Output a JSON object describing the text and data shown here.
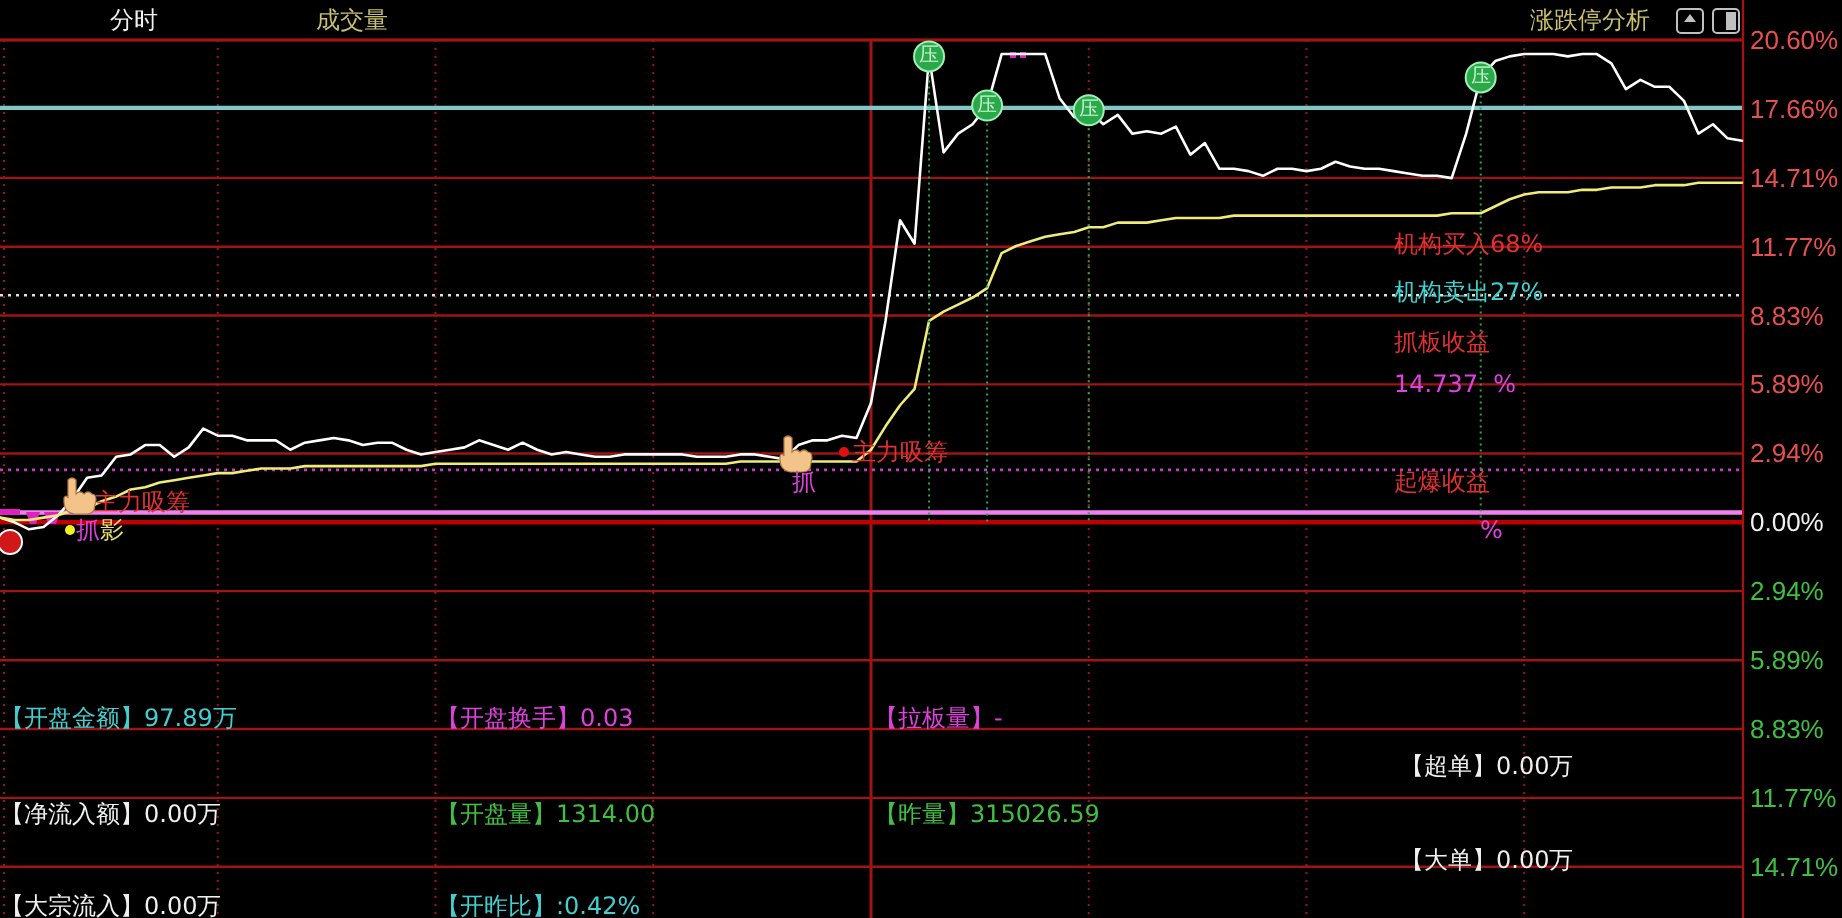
{
  "chart_data": {
    "type": "line",
    "title": "分时",
    "subtitle": "成交量",
    "categories": [
      null,
      null,
      null,
      null,
      null,
      null,
      null,
      null,
      null,
      null,
      null,
      null,
      null,
      null,
      null,
      null,
      null,
      null,
      null,
      null,
      null,
      null,
      null,
      null,
      null,
      null,
      null,
      null,
      null,
      null,
      null,
      null,
      null,
      null,
      null,
      null,
      null,
      null,
      null,
      null,
      null,
      null,
      null,
      null,
      null,
      null,
      null,
      null,
      null,
      null,
      null,
      null,
      null,
      null,
      null,
      null,
      null,
      null,
      null,
      null,
      null,
      null,
      null,
      null,
      null,
      null,
      null,
      null,
      null,
      null,
      null,
      null,
      null,
      null,
      null,
      null,
      null,
      null,
      null,
      null,
      null,
      null,
      null,
      null,
      null,
      null,
      null,
      null,
      null,
      null,
      null,
      null,
      null,
      null,
      null,
      null,
      null,
      null,
      null,
      null,
      null,
      null,
      null,
      null,
      null,
      null,
      null,
      null,
      null,
      null,
      null,
      null,
      null,
      null,
      null,
      null,
      null,
      null,
      null,
      null,
      null
    ],
    "series": [
      {
        "color": "#ffffff",
        "values": [
          0.2,
          0.0,
          -0.3,
          -0.2,
          0.3,
          1.0,
          1.9,
          2.0,
          2.8,
          2.9,
          3.3,
          3.3,
          2.8,
          3.2,
          4.0,
          3.7,
          3.7,
          3.5,
          3.5,
          3.5,
          3.1,
          3.4,
          3.5,
          3.6,
          3.5,
          3.3,
          3.4,
          3.4,
          3.1,
          2.9,
          3.0,
          3.1,
          3.2,
          3.5,
          3.3,
          3.1,
          3.4,
          3.1,
          2.9,
          3.0,
          2.9,
          2.8,
          2.8,
          2.9,
          2.9,
          2.9,
          2.9,
          2.9,
          2.8,
          2.8,
          2.8,
          2.9,
          2.9,
          2.8,
          2.7,
          3.3,
          3.5,
          3.5,
          3.7,
          3.6,
          5.1,
          8.6,
          12.9,
          11.9,
          19.9,
          15.8,
          16.6,
          17.0,
          17.8,
          20.0,
          20.0,
          20.0,
          20.0,
          18.1,
          17.3,
          17.6,
          17.0,
          17.4,
          16.6,
          16.7,
          16.6,
          16.9,
          15.7,
          16.2,
          15.1,
          15.1,
          15.0,
          14.8,
          15.1,
          15.1,
          15.0,
          15.1,
          15.4,
          15.2,
          15.1,
          15.1,
          15.0,
          14.9,
          14.8,
          14.8,
          14.7,
          16.6,
          19.0,
          19.7,
          19.9,
          20.0,
          20.0,
          20.0,
          19.9,
          20.0,
          20.0,
          19.6,
          18.5,
          18.9,
          18.6,
          18.6,
          18.0,
          16.6,
          17.0,
          16.4,
          16.3
        ]
      },
      {
        "color": "#f0ec78",
        "values": [
          0.2,
          0.1,
          0.1,
          0.2,
          0.3,
          0.5,
          0.6,
          0.9,
          1.1,
          1.4,
          1.5,
          1.7,
          1.8,
          1.9,
          2.0,
          2.1,
          2.1,
          2.2,
          2.3,
          2.3,
          2.3,
          2.4,
          2.4,
          2.4,
          2.4,
          2.4,
          2.4,
          2.4,
          2.4,
          2.4,
          2.5,
          2.5,
          2.5,
          2.5,
          2.5,
          2.5,
          2.5,
          2.5,
          2.5,
          2.5,
          2.5,
          2.5,
          2.5,
          2.5,
          2.5,
          2.5,
          2.5,
          2.5,
          2.5,
          2.5,
          2.5,
          2.6,
          2.6,
          2.6,
          2.6,
          2.6,
          2.6,
          2.6,
          2.6,
          2.6,
          3.1,
          4.1,
          5.0,
          5.7,
          8.6,
          9.0,
          9.3,
          9.6,
          10.0,
          11.5,
          11.8,
          12.0,
          12.2,
          12.3,
          12.4,
          12.6,
          12.6,
          12.8,
          12.8,
          12.8,
          12.9,
          13.0,
          13.0,
          13.0,
          13.0,
          13.1,
          13.1,
          13.1,
          13.1,
          13.1,
          13.1,
          13.1,
          13.1,
          13.1,
          13.1,
          13.1,
          13.1,
          13.1,
          13.1,
          13.1,
          13.2,
          13.2,
          13.2,
          13.5,
          13.8,
          14.0,
          14.1,
          14.1,
          14.1,
          14.2,
          14.2,
          14.3,
          14.3,
          14.3,
          14.4,
          14.4,
          14.4,
          14.5,
          14.5,
          14.5,
          14.5
        ]
      },
      {
        "type": "scatter",
        "marker": "circle",
        "color": "#2aa84a",
        "values": [
          null,
          null,
          null,
          null,
          null,
          null,
          null,
          null,
          null,
          null,
          null,
          null,
          null,
          null,
          null,
          null,
          null,
          null,
          null,
          null,
          null,
          null,
          null,
          null,
          null,
          null,
          null,
          null,
          null,
          null,
          null,
          null,
          null,
          null,
          null,
          null,
          null,
          null,
          null,
          null,
          null,
          null,
          null,
          null,
          null,
          null,
          null,
          null,
          null,
          null,
          null,
          null,
          null,
          null,
          null,
          null,
          null,
          null,
          null,
          null,
          null,
          null,
          null,
          null,
          19.9,
          null,
          null,
          null,
          17.8,
          null,
          null,
          null,
          null,
          null,
          null,
          17.6,
          null,
          null,
          null,
          null,
          null,
          null,
          null,
          null,
          null,
          null,
          null,
          null,
          null,
          null,
          null,
          null,
          null,
          null,
          null,
          null,
          null,
          null,
          null,
          null,
          null,
          null,
          19.0,
          null,
          null,
          null,
          null,
          null,
          null,
          null,
          null,
          null,
          null,
          null,
          null,
          null,
          null,
          null,
          null,
          null,
          null
        ],
        "value_labels": [
          null,
          null,
          null,
          null,
          null,
          null,
          null,
          null,
          null,
          null,
          null,
          null,
          null,
          null,
          null,
          null,
          null,
          null,
          null,
          null,
          null,
          null,
          null,
          null,
          null,
          null,
          null,
          null,
          null,
          null,
          null,
          null,
          null,
          null,
          null,
          null,
          null,
          null,
          null,
          null,
          null,
          null,
          null,
          null,
          null,
          null,
          null,
          null,
          null,
          null,
          null,
          null,
          null,
          null,
          null,
          null,
          null,
          null,
          null,
          null,
          null,
          null,
          null,
          null,
          "压",
          null,
          null,
          null,
          "压",
          null,
          null,
          null,
          null,
          null,
          null,
          "压",
          null,
          null,
          null,
          null,
          null,
          null,
          null,
          null,
          null,
          null,
          null,
          null,
          null,
          null,
          null,
          null,
          null,
          null,
          null,
          null,
          null,
          null,
          null,
          null,
          null,
          null,
          "压",
          null,
          null,
          null,
          null,
          null,
          null,
          null,
          null,
          null,
          null,
          null,
          null,
          null,
          null,
          null,
          null,
          null,
          null
        ]
      }
    ],
    "ylim": [
      -16.9,
      20.6
    ],
    "yticks": [
      {
        "value": 20.6,
        "label": "20.60%"
      },
      {
        "value": 17.66,
        "label": "17.66%"
      },
      {
        "value": 14.71,
        "label": "14.71%"
      },
      {
        "value": 11.77,
        "label": "11.77%"
      },
      {
        "value": 8.83,
        "label": "8.83%"
      },
      {
        "value": 5.89,
        "label": "5.89%"
      },
      {
        "value": 2.94,
        "label": "2.94%"
      },
      {
        "value": 0,
        "label": "0.00%"
      },
      {
        "value": -2.94,
        "label": "2.94%"
      },
      {
        "value": -5.89,
        "label": "5.89%"
      },
      {
        "value": -8.83,
        "label": "8.83%"
      },
      {
        "value": -11.77,
        "label": "11.77%"
      },
      {
        "value": -14.71,
        "label": "14.71%"
      }
    ],
    "tick_labels": "y",
    "grid": true,
    "ref_lines": [
      {
        "axis": "y",
        "value": 17.7,
        "color": "#80c8c8"
      },
      {
        "axis": "y",
        "value": 9.7,
        "color": "#e0e0e0",
        "line_style": "dotted"
      },
      {
        "axis": "y",
        "value": 2.24,
        "color": "#c040c0",
        "line_style": "dotted"
      },
      {
        "axis": "y",
        "value": 0.42,
        "color": "#f080f0"
      },
      {
        "axis": "y",
        "value": 0,
        "color": "#c00000"
      }
    ],
    "annotations": [
      "涨跌停分析",
      "机构买入68%",
      "机构卖出27%",
      "抓板收益",
      "14.737  %",
      "起爆收益",
      "%",
      "主力吸筹",
      "抓",
      "影",
      "抓",
      "主力吸筹",
      "【开盘金额】97.89万",
      "【开盘换手】0.03",
      "【拉板量】-",
      "【超单】0.00万",
      "【净流入额】0.00万",
      "【开盘量】1314.00",
      "【昨量】315026.59",
      "【大单】0.00万",
      "【大宗流入】0.00万",
      "【开昨比】:0.42%"
    ]
  }
}
